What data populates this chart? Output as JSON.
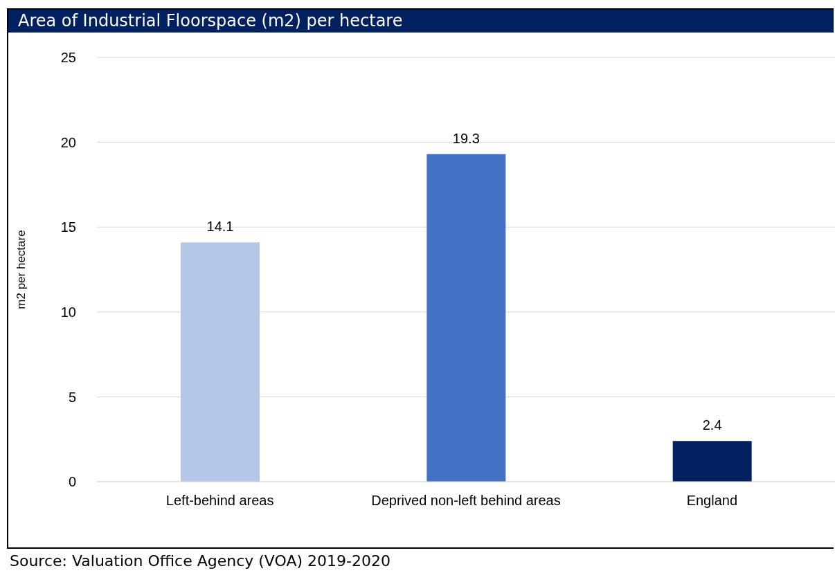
{
  "chart_data": {
    "type": "bar",
    "title": "Area of Industrial Floorspace (m2) per hectare",
    "ylabel": "m2 per hectare",
    "categories": [
      "Left-behind areas",
      "Deprived non-left behind areas",
      "England"
    ],
    "values": [
      14.1,
      19.3,
      2.4
    ],
    "colors": [
      "#b4c7e7",
      "#4472c4",
      "#002060"
    ],
    "ylim": [
      0,
      25
    ],
    "yticks": [
      0,
      5,
      10,
      15,
      20,
      25
    ],
    "grid": "y",
    "data_labels": true,
    "annotations": [
      "Source: Valuation Office Agency (VOA) 2019-2020"
    ]
  }
}
